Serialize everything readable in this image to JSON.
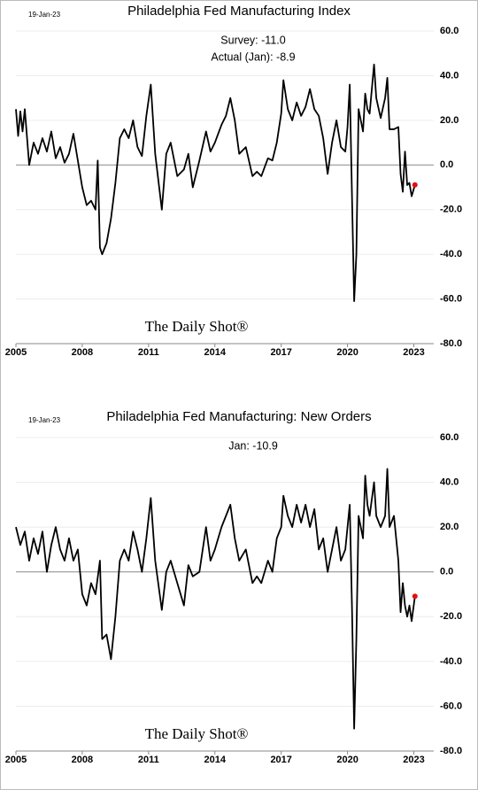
{
  "chart_data": [
    {
      "type": "line",
      "title": "Philadelphia Fed Manufacturing Index",
      "date_label": "19-Jan-23",
      "annotations": [
        "Survey:  -11.0",
        "Actual (Jan):  -8.9"
      ],
      "watermark": "The Daily Shot®",
      "x": [
        2005.0,
        2005.1,
        2005.2,
        2005.3,
        2005.4,
        2005.6,
        2005.8,
        2006.0,
        2006.2,
        2006.4,
        2006.6,
        2006.8,
        2007.0,
        2007.2,
        2007.4,
        2007.6,
        2007.8,
        2008.0,
        2008.2,
        2008.4,
        2008.6,
        2008.7,
        2008.8,
        2008.9,
        2009.1,
        2009.3,
        2009.5,
        2009.7,
        2009.9,
        2010.1,
        2010.3,
        2010.5,
        2010.7,
        2010.9,
        2011.1,
        2011.3,
        2011.6,
        2011.8,
        2012.0,
        2012.3,
        2012.6,
        2012.8,
        2013.0,
        2013.3,
        2013.6,
        2013.8,
        2014.0,
        2014.3,
        2014.5,
        2014.7,
        2014.9,
        2015.1,
        2015.4,
        2015.7,
        2015.9,
        2016.1,
        2016.4,
        2016.6,
        2016.8,
        2017.0,
        2017.1,
        2017.3,
        2017.5,
        2017.7,
        2017.9,
        2018.1,
        2018.3,
        2018.5,
        2018.7,
        2018.9,
        2019.1,
        2019.3,
        2019.5,
        2019.7,
        2019.9,
        2020.0,
        2020.1,
        2020.2,
        2020.3,
        2020.4,
        2020.5,
        2020.7,
        2020.8,
        2020.9,
        2021.0,
        2021.2,
        2021.3,
        2021.5,
        2021.7,
        2021.8,
        2021.9,
        2022.1,
        2022.3,
        2022.4,
        2022.5,
        2022.6,
        2022.7,
        2022.8,
        2022.9,
        2023.05
      ],
      "series": [
        {
          "name": "Index",
          "color": "#000000",
          "marker_color": "#e01010",
          "values": [
            25,
            13,
            24,
            15,
            25,
            0,
            10,
            5,
            12,
            6,
            15,
            3,
            8,
            1,
            5,
            14,
            2,
            -10,
            -18,
            -16,
            -20,
            2,
            -37,
            -40,
            -35,
            -24,
            -8,
            12,
            16,
            12,
            20,
            8,
            4,
            22,
            36,
            5,
            -20,
            5,
            10,
            -5,
            -2,
            5,
            -10,
            2,
            15,
            6,
            10,
            18,
            22,
            30,
            20,
            5,
            8,
            -5,
            -3,
            -5,
            3,
            2,
            10,
            23,
            38,
            25,
            20,
            28,
            22,
            26,
            34,
            25,
            22,
            12,
            -4,
            10,
            20,
            8,
            6,
            17,
            36,
            -13,
            -61,
            -40,
            25,
            15,
            32,
            25,
            23,
            45,
            30,
            21,
            30,
            39,
            16,
            16,
            17,
            -4,
            -12,
            6,
            -9,
            -8,
            -14,
            -8.9
          ]
        }
      ],
      "xlim": [
        2005,
        2023.9
      ],
      "xticks": [
        2005,
        2008,
        2011,
        2014,
        2017,
        2020,
        2023
      ],
      "ylim": [
        -80,
        60
      ],
      "yticks": [
        {
          "value": -80,
          "label": "-80.0"
        },
        {
          "value": -60,
          "label": "-60.0"
        },
        {
          "value": -40,
          "label": "-40.0"
        },
        {
          "value": -20,
          "label": "-20.0"
        },
        {
          "value": 0,
          "label": "0.0"
        },
        {
          "value": 20,
          "label": "20.0"
        },
        {
          "value": 40,
          "label": "40.0"
        },
        {
          "value": 60,
          "label": "60.0"
        }
      ],
      "grid": true
    },
    {
      "type": "line",
      "title": "Philadelphia Fed Manufacturing: New Orders",
      "date_label": "19-Jan-23",
      "annotations": [
        "Jan:    -10.9"
      ],
      "watermark": "The Daily Shot®",
      "x": [
        2005.0,
        2005.2,
        2005.4,
        2005.6,
        2005.8,
        2006.0,
        2006.2,
        2006.4,
        2006.6,
        2006.8,
        2007.0,
        2007.2,
        2007.4,
        2007.6,
        2007.8,
        2008.0,
        2008.2,
        2008.4,
        2008.6,
        2008.8,
        2008.9,
        2009.1,
        2009.3,
        2009.5,
        2009.7,
        2009.9,
        2010.1,
        2010.3,
        2010.5,
        2010.7,
        2010.9,
        2011.1,
        2011.3,
        2011.6,
        2011.8,
        2012.0,
        2012.3,
        2012.6,
        2012.8,
        2013.0,
        2013.3,
        2013.6,
        2013.8,
        2014.0,
        2014.3,
        2014.5,
        2014.7,
        2014.9,
        2015.1,
        2015.4,
        2015.7,
        2015.9,
        2016.1,
        2016.4,
        2016.6,
        2016.8,
        2017.0,
        2017.1,
        2017.3,
        2017.5,
        2017.7,
        2017.9,
        2018.1,
        2018.3,
        2018.5,
        2018.7,
        2018.9,
        2019.1,
        2019.3,
        2019.5,
        2019.7,
        2019.9,
        2020.0,
        2020.1,
        2020.2,
        2020.3,
        2020.4,
        2020.5,
        2020.7,
        2020.8,
        2020.9,
        2021.0,
        2021.2,
        2021.3,
        2021.5,
        2021.7,
        2021.8,
        2021.9,
        2022.1,
        2022.3,
        2022.4,
        2022.5,
        2022.6,
        2022.7,
        2022.8,
        2022.9,
        2023.05
      ],
      "series": [
        {
          "name": "New Orders",
          "color": "#000000",
          "marker_color": "#e01010",
          "values": [
            20,
            12,
            18,
            5,
            15,
            8,
            18,
            0,
            12,
            20,
            10,
            5,
            15,
            5,
            10,
            -10,
            -15,
            -5,
            -10,
            5,
            -30,
            -28,
            -39,
            -20,
            5,
            10,
            5,
            18,
            10,
            0,
            15,
            33,
            5,
            -17,
            0,
            5,
            -5,
            -15,
            3,
            -2,
            0,
            20,
            5,
            10,
            20,
            25,
            30,
            15,
            5,
            10,
            -5,
            -2,
            -5,
            5,
            0,
            15,
            20,
            34,
            25,
            20,
            30,
            22,
            30,
            20,
            28,
            10,
            15,
            0,
            10,
            20,
            5,
            10,
            20,
            30,
            -15,
            -70,
            -30,
            25,
            15,
            43,
            30,
            25,
            40,
            25,
            20,
            25,
            46,
            20,
            25,
            5,
            -18,
            -5,
            -15,
            -20,
            -15,
            -22,
            -10.9
          ]
        }
      ],
      "xlim": [
        2005,
        2023.9
      ],
      "xticks": [
        2005,
        2008,
        2011,
        2014,
        2017,
        2020,
        2023
      ],
      "ylim": [
        -80,
        60
      ],
      "yticks": [
        {
          "value": -80,
          "label": "-80.0"
        },
        {
          "value": -60,
          "label": "-60.0"
        },
        {
          "value": -40,
          "label": "-40.0"
        },
        {
          "value": -20,
          "label": "-20.0"
        },
        {
          "value": 0,
          "label": "0.0"
        },
        {
          "value": 20,
          "label": "20.0"
        },
        {
          "value": 40,
          "label": "40.0"
        },
        {
          "value": 60,
          "label": "60.0"
        }
      ],
      "grid": true
    }
  ]
}
